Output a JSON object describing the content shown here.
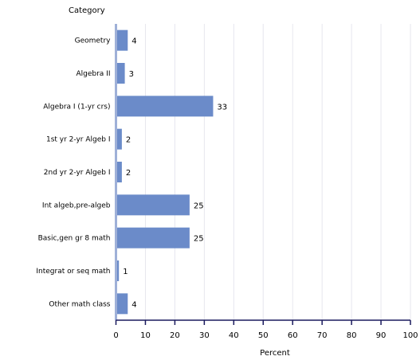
{
  "chart_data": {
    "type": "bar",
    "orientation": "horizontal",
    "category_axis_title": "Category",
    "xlabel": "Percent",
    "categories": [
      "Geometry",
      "Algebra II",
      "Algebra I (1-yr crs)",
      "1st yr 2-yr Algeb I",
      "2nd yr 2-yr Algeb I",
      "Int algeb,pre-algeb",
      "Basic,gen gr 8 math",
      "Integrat or seq math",
      "Other math class"
    ],
    "values": [
      4,
      3,
      33,
      2,
      2,
      25,
      25,
      1,
      4
    ],
    "data_labels": [
      "4",
      "3",
      "33",
      "2",
      "2",
      "25",
      "25",
      "1",
      "4"
    ],
    "xlim": [
      0,
      100
    ],
    "xticks": [
      "0",
      "10",
      "20",
      "30",
      "40",
      "50",
      "60",
      "70",
      "80",
      "90",
      "100"
    ],
    "grid": true,
    "bar_color": "#6b8bc9",
    "axis_color": "#1a1a5e",
    "grid_color": "#e6e6ee"
  }
}
